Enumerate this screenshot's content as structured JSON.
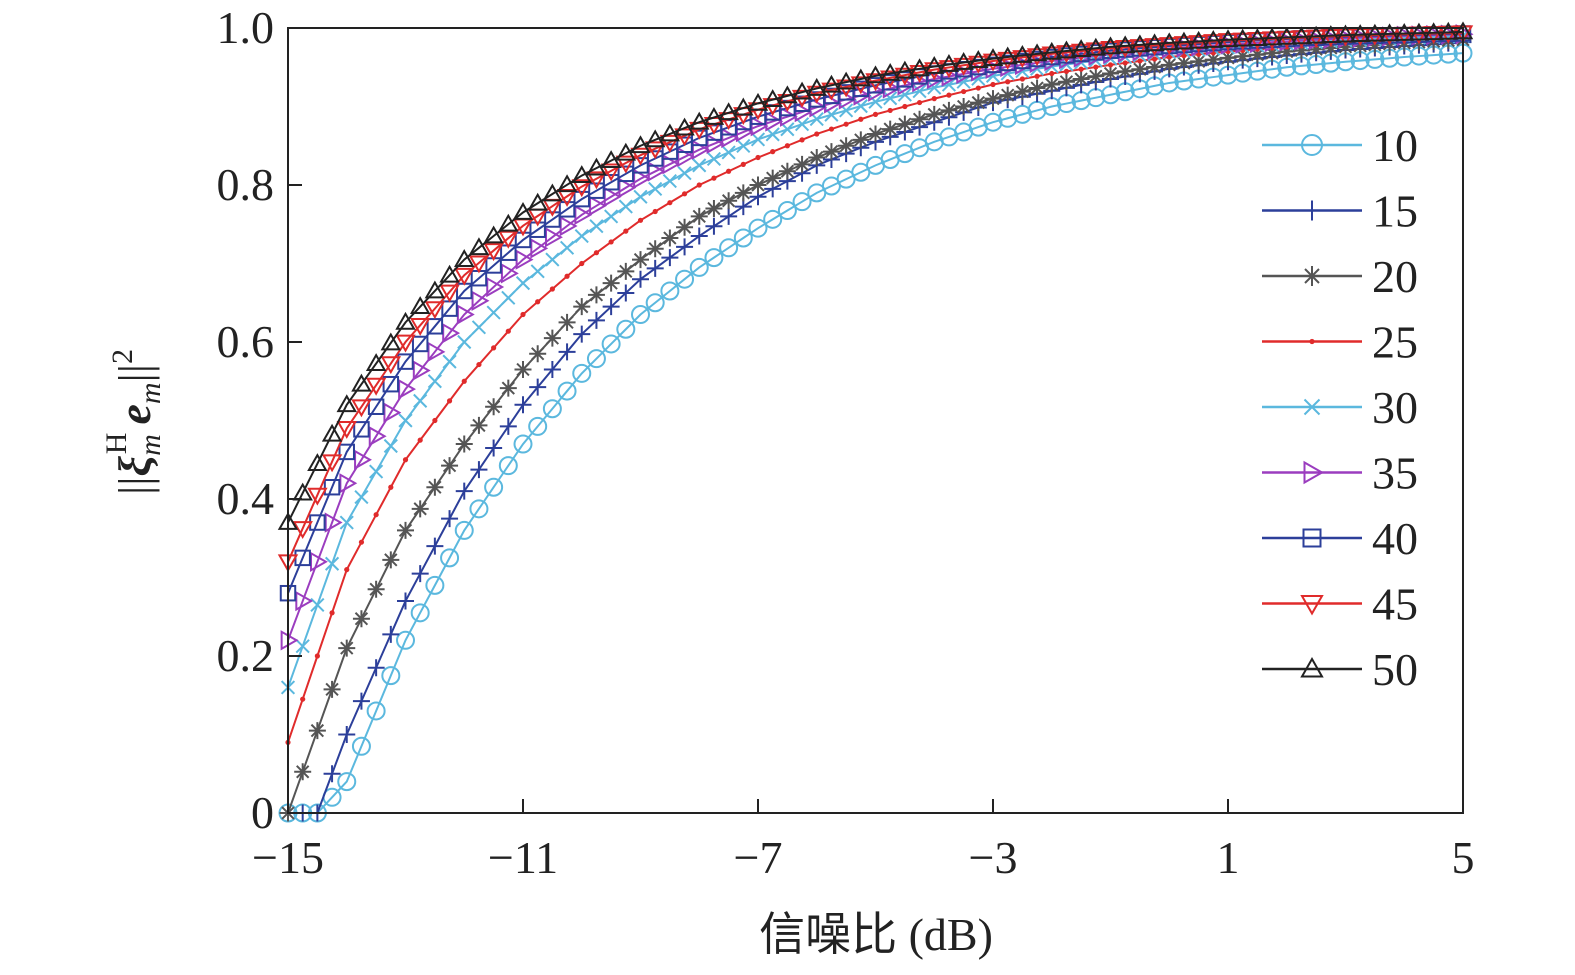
{
  "chart_data": {
    "type": "line",
    "xlabel": "信噪比 (dB)",
    "ylabel_parts": {
      "norm_open": "||",
      "xi": "ξ",
      "xi_sup": "H",
      "xi_sub": "m",
      "e": "e",
      "e_sub": "m",
      "norm_close": "||",
      "power": "2"
    },
    "xlim": [
      -15,
      5
    ],
    "ylim": [
      0,
      1
    ],
    "xticks": [
      -15,
      -11,
      -7,
      -3,
      1,
      5
    ],
    "xtick_labels": [
      "−15",
      "−11",
      "−7",
      "−3",
      "1",
      "5"
    ],
    "yticks": [
      0,
      0.2,
      0.4,
      0.6,
      0.8,
      1.0
    ],
    "ytick_labels": [
      "0",
      "0.2",
      "0.4",
      "0.6",
      "0.8",
      "1.0"
    ],
    "grid": false,
    "legend_position": "right",
    "x_step": 0.25,
    "series": [
      {
        "name": "10",
        "color": "#5bb8de",
        "marker": "circle",
        "points": [
          [
            -15,
            0
          ],
          [
            -14.5,
            0
          ],
          [
            -14,
            0.04
          ],
          [
            -13,
            0.22
          ],
          [
            -12,
            0.36
          ],
          [
            -11,
            0.47
          ],
          [
            -10,
            0.56
          ],
          [
            -9,
            0.635
          ],
          [
            -8,
            0.695
          ],
          [
            -7,
            0.745
          ],
          [
            -6,
            0.79
          ],
          [
            -5,
            0.825
          ],
          [
            -4,
            0.855
          ],
          [
            -3,
            0.88
          ],
          [
            -2,
            0.9
          ],
          [
            -1,
            0.915
          ],
          [
            0,
            0.93
          ],
          [
            1,
            0.94
          ],
          [
            2,
            0.95
          ],
          [
            3,
            0.957
          ],
          [
            4,
            0.963
          ],
          [
            5,
            0.968
          ]
        ]
      },
      {
        "name": "15",
        "color": "#2c3f9a",
        "marker": "plus",
        "points": [
          [
            -15,
            0
          ],
          [
            -14.5,
            0
          ],
          [
            -14,
            0.1
          ],
          [
            -13,
            0.27
          ],
          [
            -12,
            0.41
          ],
          [
            -11,
            0.52
          ],
          [
            -10,
            0.61
          ],
          [
            -9,
            0.68
          ],
          [
            -8,
            0.735
          ],
          [
            -7,
            0.785
          ],
          [
            -6,
            0.825
          ],
          [
            -5,
            0.855
          ],
          [
            -4,
            0.88
          ],
          [
            -3,
            0.905
          ],
          [
            -2,
            0.92
          ],
          [
            -1,
            0.935
          ],
          [
            0,
            0.948
          ],
          [
            1,
            0.957
          ],
          [
            2,
            0.965
          ],
          [
            3,
            0.972
          ],
          [
            4,
            0.977
          ],
          [
            5,
            0.982
          ]
        ]
      },
      {
        "name": "20",
        "color": "#555555",
        "marker": "star",
        "points": [
          [
            -15,
            0
          ],
          [
            -14,
            0.21
          ],
          [
            -13,
            0.36
          ],
          [
            -12,
            0.47
          ],
          [
            -11,
            0.565
          ],
          [
            -10,
            0.645
          ],
          [
            -9,
            0.705
          ],
          [
            -8,
            0.76
          ],
          [
            -7,
            0.8
          ],
          [
            -6,
            0.835
          ],
          [
            -5,
            0.865
          ],
          [
            -4,
            0.89
          ],
          [
            -3,
            0.91
          ],
          [
            -2,
            0.928
          ],
          [
            -1,
            0.942
          ],
          [
            0,
            0.953
          ],
          [
            1,
            0.962
          ],
          [
            2,
            0.97
          ],
          [
            3,
            0.976
          ],
          [
            4,
            0.981
          ],
          [
            5,
            0.985
          ]
        ]
      },
      {
        "name": "25",
        "color": "#e02b2b",
        "marker": "dot",
        "points": [
          [
            -15,
            0.09
          ],
          [
            -14,
            0.31
          ],
          [
            -13,
            0.45
          ],
          [
            -12,
            0.55
          ],
          [
            -11,
            0.635
          ],
          [
            -10,
            0.7
          ],
          [
            -9,
            0.755
          ],
          [
            -8,
            0.8
          ],
          [
            -7,
            0.835
          ],
          [
            -6,
            0.865
          ],
          [
            -5,
            0.89
          ],
          [
            -4,
            0.91
          ],
          [
            -3,
            0.928
          ],
          [
            -2,
            0.942
          ],
          [
            -1,
            0.953
          ],
          [
            0,
            0.963
          ],
          [
            1,
            0.97
          ],
          [
            2,
            0.976
          ],
          [
            3,
            0.981
          ],
          [
            4,
            0.985
          ],
          [
            5,
            0.988
          ]
        ]
      },
      {
        "name": "30",
        "color": "#5bb8de",
        "marker": "x",
        "points": [
          [
            -15,
            0.16
          ],
          [
            -14,
            0.37
          ],
          [
            -13,
            0.5
          ],
          [
            -12,
            0.6
          ],
          [
            -11,
            0.675
          ],
          [
            -10,
            0.735
          ],
          [
            -9,
            0.785
          ],
          [
            -8,
            0.825
          ],
          [
            -7,
            0.858
          ],
          [
            -6,
            0.884
          ],
          [
            -5,
            0.906
          ],
          [
            -4,
            0.924
          ],
          [
            -3,
            0.939
          ],
          [
            -2,
            0.951
          ],
          [
            -1,
            0.961
          ],
          [
            0,
            0.969
          ],
          [
            1,
            0.975
          ],
          [
            2,
            0.98
          ],
          [
            3,
            0.984
          ],
          [
            4,
            0.987
          ],
          [
            5,
            0.99
          ]
        ]
      },
      {
        "name": "35",
        "color": "#9b3dbf",
        "marker": "tri-right",
        "points": [
          [
            -15,
            0.22
          ],
          [
            -14,
            0.42
          ],
          [
            -13,
            0.54
          ],
          [
            -12,
            0.635
          ],
          [
            -11,
            0.705
          ],
          [
            -10,
            0.762
          ],
          [
            -9,
            0.808
          ],
          [
            -8,
            0.845
          ],
          [
            -7,
            0.875
          ],
          [
            -6,
            0.899
          ],
          [
            -5,
            0.919
          ],
          [
            -4,
            0.935
          ],
          [
            -3,
            0.948
          ],
          [
            -2,
            0.958
          ],
          [
            -1,
            0.967
          ],
          [
            0,
            0.974
          ],
          [
            1,
            0.979
          ],
          [
            2,
            0.983
          ],
          [
            3,
            0.987
          ],
          [
            4,
            0.99
          ],
          [
            5,
            0.992
          ]
        ]
      },
      {
        "name": "40",
        "color": "#2c3f9a",
        "marker": "square",
        "points": [
          [
            -15,
            0.28
          ],
          [
            -14,
            0.46
          ],
          [
            -13,
            0.575
          ],
          [
            -12,
            0.665
          ],
          [
            -11,
            0.73
          ],
          [
            -10,
            0.782
          ],
          [
            -9,
            0.825
          ],
          [
            -8,
            0.86
          ],
          [
            -7,
            0.887
          ],
          [
            -6,
            0.909
          ],
          [
            -5,
            0.927
          ],
          [
            -4,
            0.942
          ],
          [
            -3,
            0.953
          ],
          [
            -2,
            0.963
          ],
          [
            -1,
            0.971
          ],
          [
            0,
            0.977
          ],
          [
            1,
            0.982
          ],
          [
            2,
            0.986
          ],
          [
            3,
            0.989
          ],
          [
            4,
            0.991
          ],
          [
            5,
            0.993
          ]
        ]
      },
      {
        "name": "45",
        "color": "#e02b2b",
        "marker": "tri-down",
        "points": [
          [
            -15,
            0.32
          ],
          [
            -14,
            0.49
          ],
          [
            -13,
            0.6
          ],
          [
            -12,
            0.685
          ],
          [
            -11,
            0.748
          ],
          [
            -10,
            0.798
          ],
          [
            -9,
            0.838
          ],
          [
            -8,
            0.871
          ],
          [
            -7,
            0.896
          ],
          [
            -6,
            0.917
          ],
          [
            -5,
            0.933
          ],
          [
            -4,
            0.947
          ],
          [
            -3,
            0.958
          ],
          [
            -2,
            0.967
          ],
          [
            -1,
            0.974
          ],
          [
            0,
            0.979
          ],
          [
            1,
            0.984
          ],
          [
            2,
            0.987
          ],
          [
            3,
            0.99
          ],
          [
            4,
            0.992
          ],
          [
            5,
            0.994
          ]
        ]
      },
      {
        "name": "50",
        "color": "#222222",
        "marker": "tri-up",
        "points": [
          [
            -15,
            0.37
          ],
          [
            -14,
            0.52
          ],
          [
            -13,
            0.625
          ],
          [
            -12,
            0.705
          ],
          [
            -11,
            0.765
          ],
          [
            -10,
            0.812
          ],
          [
            -9,
            0.85
          ],
          [
            -8,
            0.88
          ],
          [
            -7,
            0.904
          ],
          [
            -6,
            0.923
          ],
          [
            -5,
            0.939
          ],
          [
            -4,
            0.951
          ],
          [
            -3,
            0.961
          ],
          [
            -2,
            0.969
          ],
          [
            -1,
            0.976
          ],
          [
            0,
            0.981
          ],
          [
            1,
            0.985
          ],
          [
            2,
            0.988
          ],
          [
            3,
            0.991
          ],
          [
            4,
            0.993
          ],
          [
            5,
            0.995
          ]
        ]
      }
    ]
  }
}
